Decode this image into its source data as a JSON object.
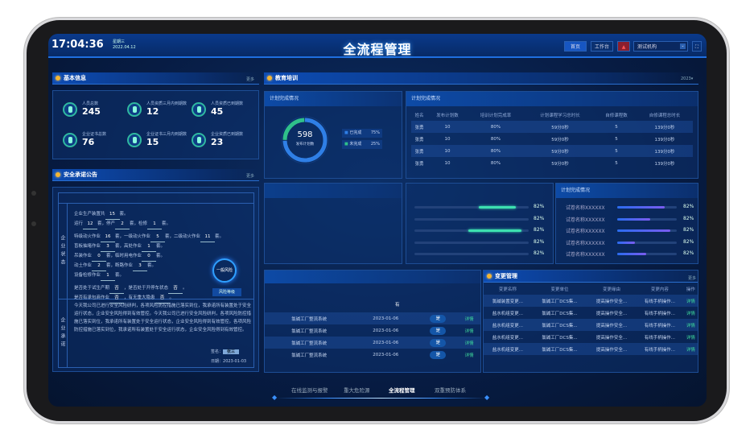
{
  "header": {
    "time": "17:04:36",
    "weekday": "星期三",
    "date": "2022.04.12",
    "title": "全流程管理",
    "home_btn": "首页",
    "workbench_btn": "工作台",
    "org_select": "测试机构"
  },
  "basic": {
    "title": "基本信息",
    "more": "更多",
    "stats": [
      {
        "label": "人员总数",
        "value": "245"
      },
      {
        "label": "人员资质三月内到期数",
        "value": "12"
      },
      {
        "label": "人员资质已到期数",
        "value": "45"
      },
      {
        "label": "企业证书总数",
        "value": "76"
      },
      {
        "label": "企业证书三月内到期数",
        "value": "15"
      },
      {
        "label": "企业资质已到期数",
        "value": "23"
      }
    ]
  },
  "safety": {
    "title": "安全承诺公告",
    "more": "更多",
    "status_label": "企业状态",
    "commit_label": "企业承诺",
    "lines": [
      [
        "企业生产装置共",
        "15",
        "套。"
      ],
      [
        "运行",
        "12",
        "套，停产",
        "2",
        "套，检修",
        "1",
        "套。"
      ],
      [
        "特级动火作业",
        "16",
        "套，一级动火作业",
        "5",
        "套，二级动火作业",
        "11",
        "套。"
      ],
      [
        "盲板抽堵作业",
        "3",
        "套，高处作业",
        "1",
        "套。"
      ],
      [
        "吊装作业",
        "0",
        "套，临时用电作业",
        "0",
        "套。"
      ],
      [
        "动土作业",
        "2",
        "套，断路作业",
        "3",
        "套。"
      ],
      [
        "设备检修作业",
        "1",
        "套。"
      ],
      [
        "是否处于试生产期",
        "否",
        "，是否处于开停车状态",
        "否",
        "。"
      ],
      [
        "是否有承包商作业",
        "否",
        "，有无重大隐患",
        "否",
        "。"
      ]
    ],
    "risk_level": "一般风险",
    "risk_btn": "风险等级",
    "commitment": "今天我公司已进行安全风险研判，各项风险防控措施已落实到位，我承诺所有装置处于安全运行状态，企业安全风险得到有效管控。今天我公司已进行安全风险研判，各项风险防控措施已落实到位，我承诺所有装置处于安全运行状态，企业安全风险得到有效管控。各项风险防控措施已落实到位，我承诺所有装置处于安全运行状态，企业安全风险得到有效管控。",
    "sign_label": "签名：",
    "signer": "张三",
    "date_label": "日期：",
    "date": "2023-01-03"
  },
  "edu": {
    "title": "教育培训",
    "year": "2023",
    "donut": {
      "title": "计划完成情况",
      "total": "598",
      "total_label": "发布计划数",
      "legend": [
        {
          "label": "已完成",
          "pct": "75%",
          "value": 75,
          "color": "#2f7fe6"
        },
        {
          "label": "未完成",
          "pct": "25%",
          "value": 25,
          "color": "#2fc08a"
        }
      ]
    },
    "table": {
      "title": "计划完成情况",
      "headers": [
        "姓名",
        "发布计划数",
        "培训计划完成率",
        "计划课程学习总时长",
        "自修课程数",
        "自修课程总时长"
      ],
      "rows": [
        [
          "张勇",
          "10",
          "80%",
          "59分0秒",
          "5",
          "139分0秒"
        ],
        [
          "张勇",
          "10",
          "80%",
          "59分0秒",
          "5",
          "139分0秒"
        ],
        [
          "张勇",
          "10",
          "80%",
          "59分0秒",
          "5",
          "139分0秒"
        ],
        [
          "张勇",
          "10",
          "80%",
          "59分0秒",
          "5",
          "139分0秒"
        ]
      ]
    }
  },
  "mid_bars": {
    "items": [
      {
        "pct": "82%",
        "start": 0.56,
        "end": 0.89
      },
      {
        "pct": "82%",
        "start": 0,
        "end": 0
      },
      {
        "pct": "82%",
        "start": 0.47,
        "end": 0.94
      },
      {
        "pct": "82%",
        "start": 0,
        "end": 0
      },
      {
        "pct": "82%",
        "start": 0,
        "end": 0
      }
    ]
  },
  "exam": {
    "title": "计划完成情况",
    "items": [
      {
        "name": "试卷名称XXXXXX",
        "pct": "82%",
        "fill": 0.8
      },
      {
        "name": "试卷名称XXXXXX",
        "pct": "82%",
        "fill": 0.55
      },
      {
        "name": "试卷名称XXXXXX",
        "pct": "82%",
        "fill": 0.89
      },
      {
        "name": "试卷名称XXXXXX",
        "pct": "82%",
        "fill": 0.3
      },
      {
        "name": "试卷名称XXXXXX",
        "pct": "82%",
        "fill": 0.48
      }
    ]
  },
  "sys_table": {
    "mid_value": "有",
    "rows": [
      [
        "氯碱工厂整流系统",
        "2023-01-06",
        "是",
        "详情"
      ],
      [
        "氯碱工厂整流系统",
        "2023-01-06",
        "是",
        "详情"
      ],
      [
        "氯碱工厂整流系统",
        "2023-01-06",
        "是",
        "详情"
      ],
      [
        "氯碱工厂整流系统",
        "2023-01-06",
        "是",
        "详情"
      ]
    ]
  },
  "change": {
    "title": "变更管理",
    "more": "更多",
    "headers": [
      "变更名称",
      "变更单位",
      "变更缘由",
      "变更内容",
      "操作"
    ],
    "rows": [
      [
        "氯碱装置变更...",
        "氯碱工厂DCS集...",
        "提高操作安全...",
        "有线手柄操作...",
        "详情"
      ],
      [
        "盐水机组变更...",
        "氯碱工厂DCS集...",
        "提高操作安全...",
        "有线手柄操作...",
        "详情"
      ],
      [
        "盐水机组变更...",
        "氯碱工厂DCS集...",
        "提高操作安全...",
        "有线手柄操作...",
        "详情"
      ],
      [
        "盐水机组变更...",
        "氯碱工厂DCS集...",
        "提高操作安全...",
        "有线手柄操作...",
        "详情"
      ],
      [
        "盐水机组变更...",
        "氯碱工厂DCS集...",
        "提高操作安全...",
        "有线手柄操作...",
        "详情"
      ]
    ]
  },
  "bottom_nav": [
    {
      "label": "在线监测与报警",
      "active": false
    },
    {
      "label": "重大危险源",
      "active": false
    },
    {
      "label": "全流程管理",
      "active": true
    },
    {
      "label": "双重预防体系",
      "active": false
    }
  ],
  "colors": {
    "accent": "#1f6fe0",
    "green": "#2fc08a",
    "title_dot": "#f3b533"
  }
}
